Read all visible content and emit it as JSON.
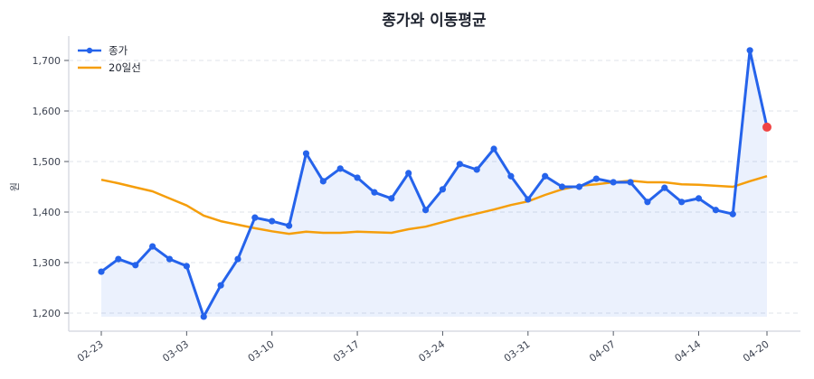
{
  "chart_data": {
    "type": "line",
    "title": "종가와 이동평균",
    "xlabel": "",
    "ylabel": "원",
    "ylim": [
      1170,
      1750
    ],
    "yticks": [
      1200,
      1300,
      1400,
      1500,
      1600,
      1700
    ],
    "ytick_labels": [
      "1,200",
      "1,300",
      "1,400",
      "1,500",
      "1,600",
      "1,700"
    ],
    "xtick_labels": [
      "02-23",
      "03-03",
      "03-10",
      "03-17",
      "03-24",
      "03-31",
      "04-07",
      "04-14",
      "04-20"
    ],
    "xtick_indices": [
      0,
      5,
      10,
      15,
      20,
      25,
      30,
      35,
      39
    ],
    "grid": true,
    "legend_position": "upper left",
    "series": [
      {
        "name": "종가",
        "color": "#2563eb",
        "marker": "circle",
        "fill": true,
        "values": [
          1282,
          1307,
          1295,
          1332,
          1307,
          1293,
          1193,
          1255,
          1307,
          1389,
          1382,
          1373,
          1516,
          1461,
          1486,
          1468,
          1439,
          1427,
          1477,
          1404,
          1445,
          1495,
          1484,
          1525,
          1471,
          1425,
          1471,
          1450,
          1450,
          1466,
          1459,
          1459,
          1420,
          1448,
          1420,
          1427,
          1404,
          1396,
          1720,
          1568
        ]
      },
      {
        "name": "20일선",
        "color": "#f59e0b",
        "marker": "none",
        "values": [
          1464,
          1457,
          1449,
          1441,
          1427,
          1413,
          1393,
          1382,
          1375,
          1368,
          1362,
          1357,
          1361,
          1359,
          1359,
          1361,
          1360,
          1359,
          1366,
          1371,
          1380,
          1389,
          1397,
          1405,
          1414,
          1421,
          1434,
          1445,
          1452,
          1455,
          1459,
          1462,
          1459,
          1459,
          1455,
          1454,
          1452,
          1450,
          1461,
          1471
        ]
      }
    ],
    "last_point_highlight": {
      "index": 39,
      "value": 1568,
      "color": "#ef4444"
    }
  }
}
